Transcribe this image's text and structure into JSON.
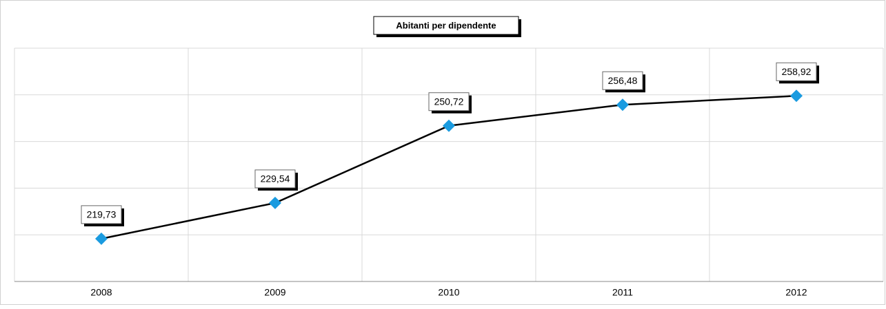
{
  "chart_data": {
    "type": "line",
    "title": "Abitanti per dipendente",
    "categories": [
      "2008",
      "2009",
      "2010",
      "2011",
      "2012"
    ],
    "series": [
      {
        "name": "Abitanti per dipendente",
        "color": "#1a9be0",
        "values": [
          219.73,
          229.54,
          250.72,
          256.48,
          258.92
        ],
        "value_labels": [
          "219,73",
          "229,54",
          "250,72",
          "256,48",
          "258,92"
        ]
      }
    ],
    "ylim": [
      208,
      272
    ],
    "yticks": [
      208,
      220.8,
      233.6,
      246.4,
      259.2,
      272
    ],
    "grid": true
  }
}
